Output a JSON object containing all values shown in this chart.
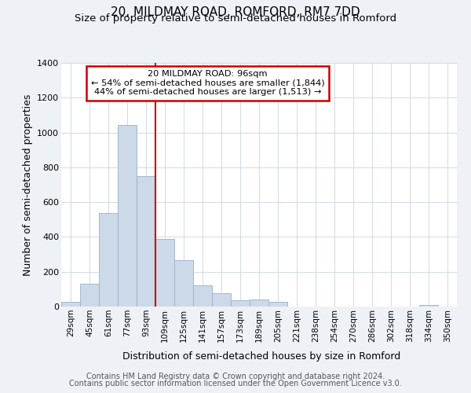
{
  "title": "20, MILDMAY ROAD, ROMFORD, RM7 7DD",
  "subtitle": "Size of property relative to semi-detached houses in Romford",
  "xlabel": "Distribution of semi-detached houses by size in Romford",
  "ylabel": "Number of semi-detached properties",
  "categories": [
    "29sqm",
    "45sqm",
    "61sqm",
    "77sqm",
    "93sqm",
    "109sqm",
    "125sqm",
    "141sqm",
    "157sqm",
    "173sqm",
    "189sqm",
    "205sqm",
    "221sqm",
    "238sqm",
    "254sqm",
    "270sqm",
    "286sqm",
    "302sqm",
    "318sqm",
    "334sqm",
    "350sqm"
  ],
  "values": [
    28,
    130,
    537,
    1042,
    748,
    390,
    265,
    120,
    78,
    35,
    40,
    28,
    0,
    0,
    0,
    0,
    0,
    0,
    0,
    10,
    0
  ],
  "bar_color": "#ccd9e8",
  "bar_edge_color": "#9ab0c8",
  "red_line_color": "#cc0000",
  "annotation_box_edge_color": "#cc0000",
  "property_label": "20 MILDMAY ROAD: 96sqm",
  "pct_smaller": 54,
  "n_smaller": 1844,
  "pct_larger": 44,
  "n_larger": 1513,
  "marker_bin_index": 4,
  "ylim": [
    0,
    1400
  ],
  "yticks": [
    0,
    200,
    400,
    600,
    800,
    1000,
    1200,
    1400
  ],
  "footer_line1": "Contains HM Land Registry data © Crown copyright and database right 2024.",
  "footer_line2": "Contains public sector information licensed under the Open Government Licence v3.0.",
  "bg_color": "#eef2f7",
  "plot_bg_color": "#ffffff",
  "title_fontsize": 11,
  "subtitle_fontsize": 9.5,
  "axis_label_fontsize": 9,
  "tick_fontsize": 8,
  "footer_fontsize": 7
}
